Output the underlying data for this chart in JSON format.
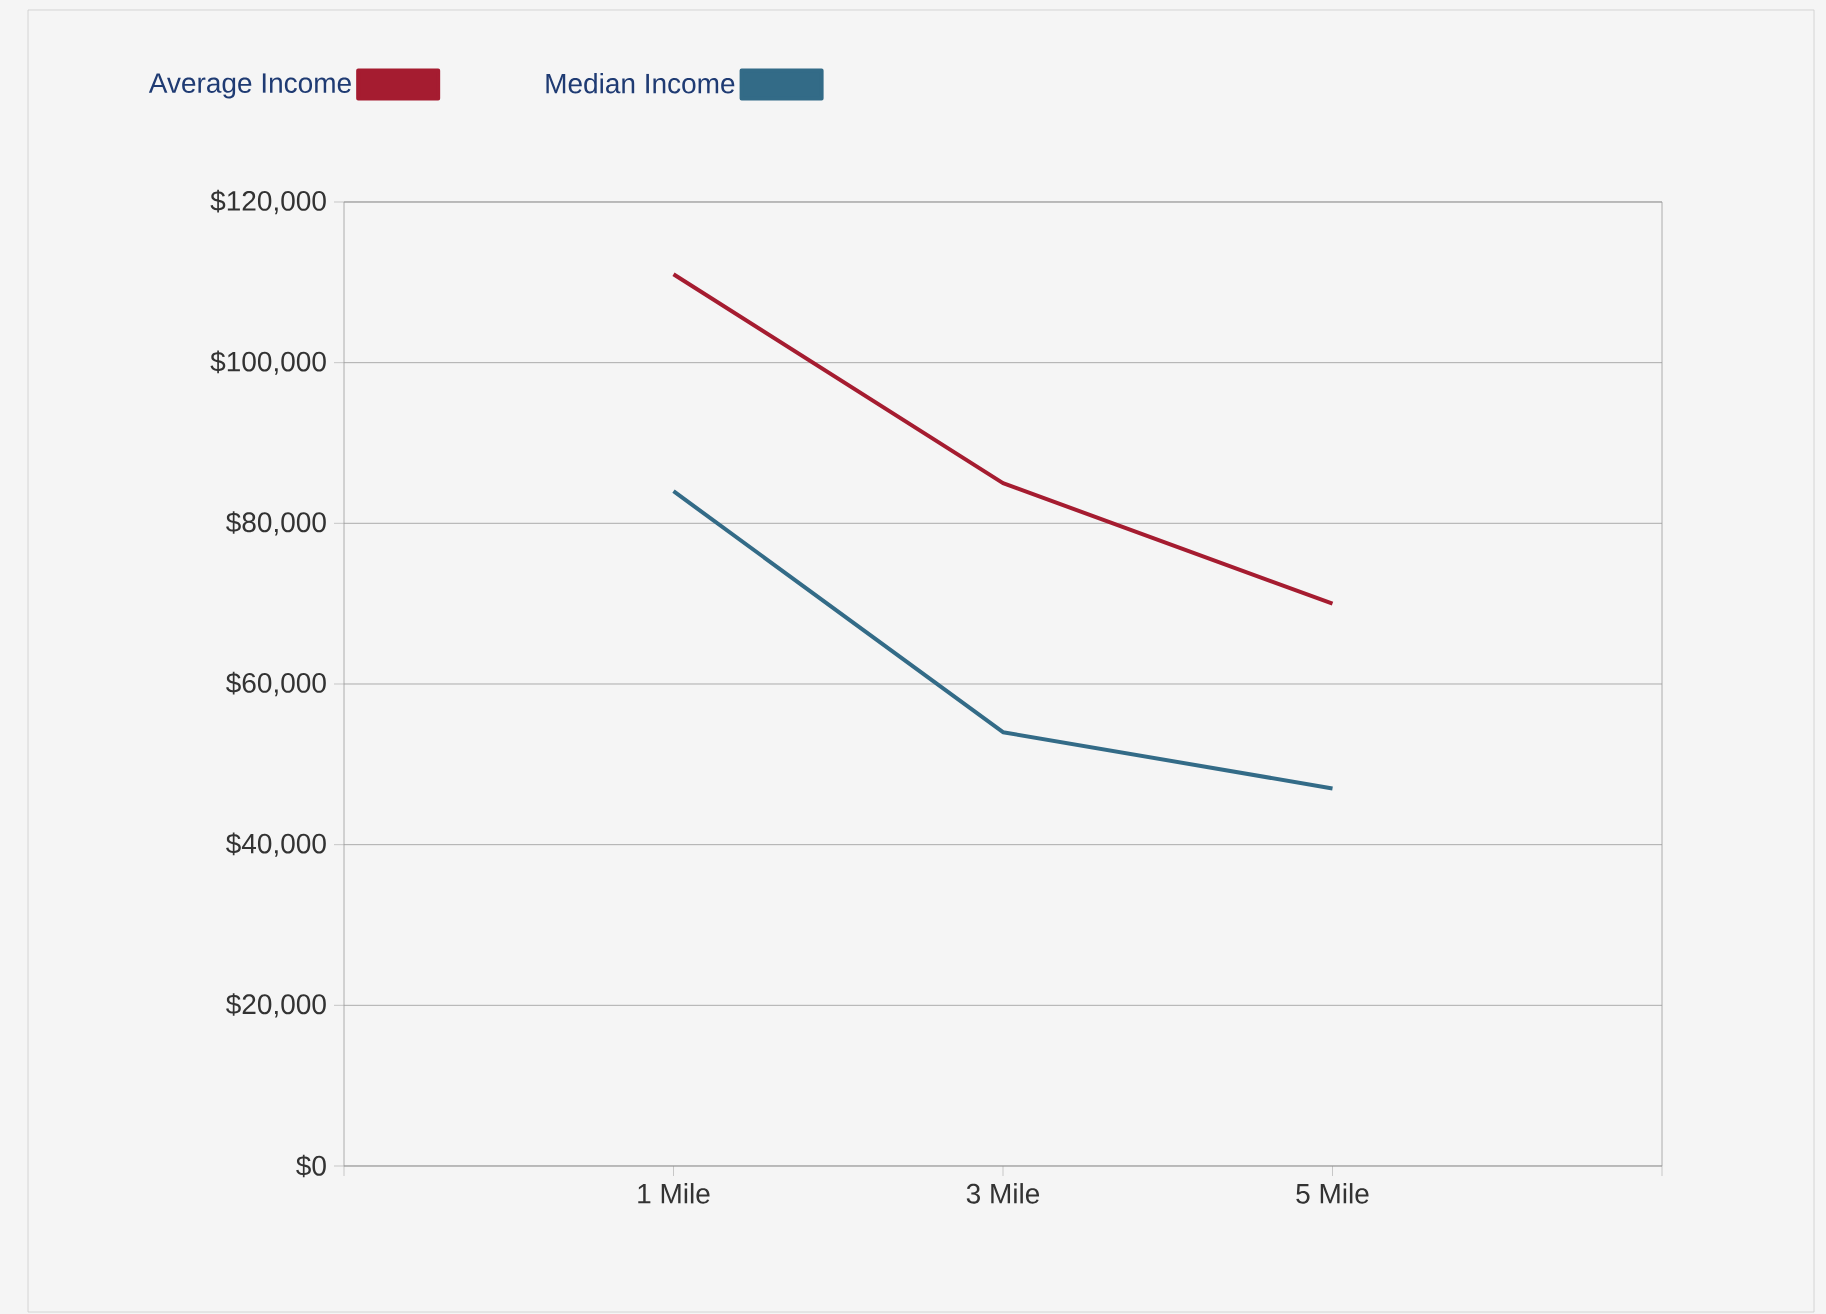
{
  "chart_data": {
    "type": "line",
    "categories": [
      null,
      "1 Mile",
      "3 Mile",
      "5 Mile",
      null
    ],
    "series": [
      {
        "name": "Average Income",
        "color": "#a51c30",
        "values": [
          null,
          111000,
          85000,
          70000,
          null
        ]
      },
      {
        "name": "Median Income",
        "color": "#336b87",
        "values": [
          null,
          84000,
          54000,
          47000,
          null
        ]
      }
    ],
    "ylim": [
      0,
      120000
    ],
    "yticks": [
      {
        "value": 0,
        "label": "$0"
      },
      {
        "value": 20000,
        "label": "$20,000"
      },
      {
        "value": 40000,
        "label": "$40,000"
      },
      {
        "value": 60000,
        "label": "$60,000"
      },
      {
        "value": 80000,
        "label": "$80,000"
      },
      {
        "value": 100000,
        "label": "$100,000"
      },
      {
        "value": 120000,
        "label": "$120,000"
      }
    ],
    "grid": "y",
    "legend": "top left"
  }
}
